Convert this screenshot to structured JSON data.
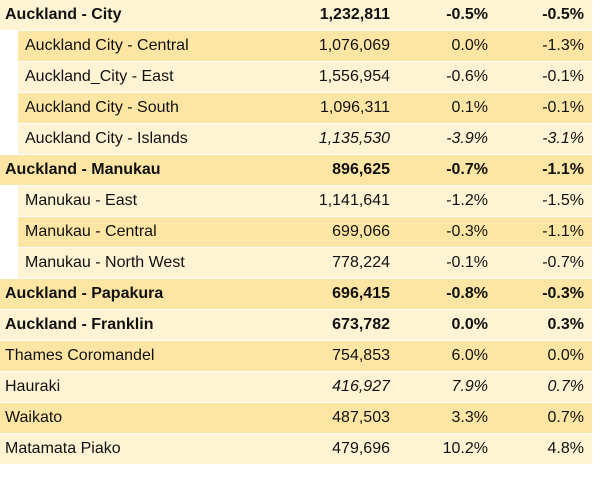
{
  "table": {
    "rows": [
      {
        "cells": [
          "Auckland - City",
          "1,232,811",
          "-0.5%",
          "-0.5%"
        ],
        "bold": true
      },
      {
        "cells": [
          "Auckland City - Central",
          "1,076,069",
          "0.0%",
          "-1.3%"
        ],
        "indent": true
      },
      {
        "cells": [
          "Auckland_City - East",
          "1,556,954",
          "-0.6%",
          "-0.1%"
        ],
        "indent": true
      },
      {
        "cells": [
          "Auckland City - South",
          "1,096,311",
          "0.1%",
          "-0.1%"
        ],
        "indent": true
      },
      {
        "cells": [
          "Auckland City - Islands",
          "1,135,530",
          "-3.9%",
          "-3.1%"
        ],
        "indent": true,
        "italic": true
      },
      {
        "cells": [
          "Auckland - Manukau",
          "896,625",
          "-0.7%",
          "-1.1%"
        ],
        "bold": true
      },
      {
        "cells": [
          "Manukau - East",
          "1,141,641",
          "-1.2%",
          "-1.5%"
        ],
        "indent": true
      },
      {
        "cells": [
          "Manukau - Central",
          "699,066",
          "-0.3%",
          "-1.1%"
        ],
        "indent": true
      },
      {
        "cells": [
          "Manukau - North West",
          "778,224",
          "-0.1%",
          "-0.7%"
        ],
        "indent": true
      },
      {
        "cells": [
          "Auckland - Papakura",
          "696,415",
          "-0.8%",
          "-0.3%"
        ],
        "bold": true
      },
      {
        "cells": [
          "Auckland - Franklin",
          "673,782",
          "0.0%",
          "0.3%"
        ],
        "bold": true
      },
      {
        "cells": [
          "Thames Coromandel",
          "754,853",
          "6.0%",
          "0.0%"
        ]
      },
      {
        "cells": [
          "Hauraki",
          "416,927",
          "7.9%",
          "0.7%"
        ],
        "italic": true
      },
      {
        "cells": [
          "Waikato",
          "487,503",
          "3.3%",
          "0.7%"
        ]
      },
      {
        "cells": [
          "Matamata Piako",
          "479,696",
          "10.2%",
          "4.8%"
        ]
      }
    ]
  }
}
